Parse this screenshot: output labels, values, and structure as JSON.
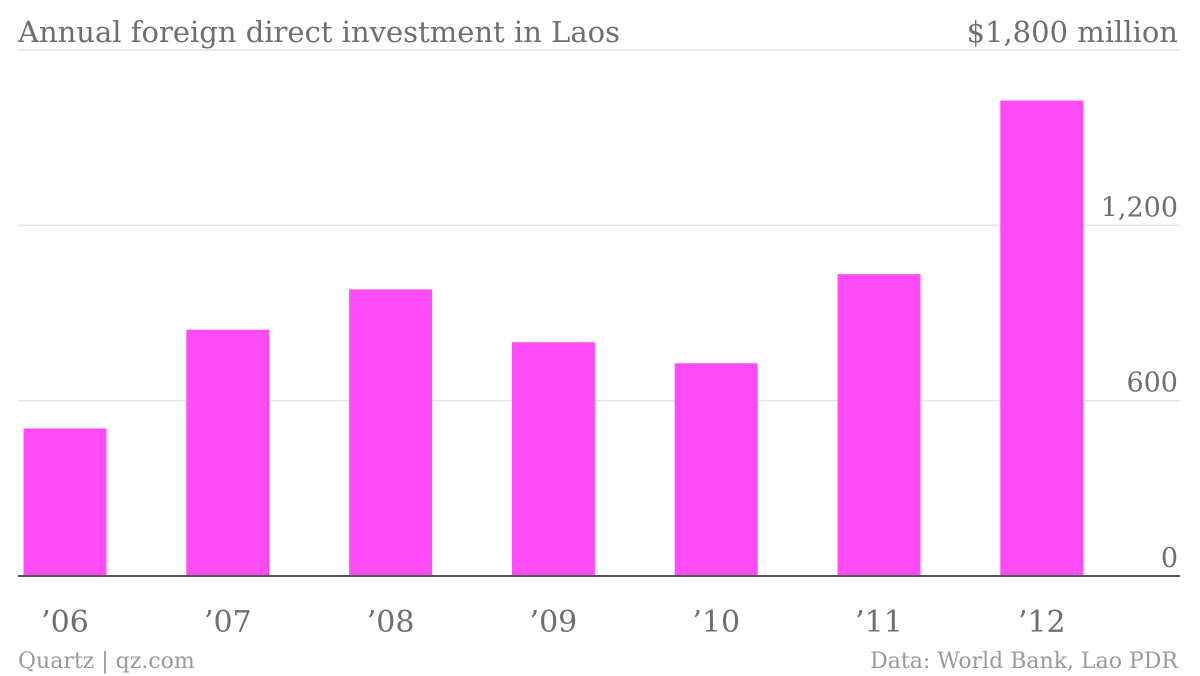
{
  "chart_data": {
    "type": "bar",
    "title": "Annual foreign direct investment in Laos",
    "top_label": "$1,800 million",
    "categories": [
      "’06",
      "’07",
      "’08",
      "’09",
      "’10",
      "’11",
      "’12"
    ],
    "values": [
      505,
      843,
      981,
      800,
      728,
      1033,
      1627
    ],
    "ylim": [
      0,
      1800
    ],
    "yticks": [
      {
        "value": 0,
        "label": "0"
      },
      {
        "value": 600,
        "label": "600"
      },
      {
        "value": 1200,
        "label": "1,200"
      }
    ],
    "grid": true,
    "bar_color": "#ff4cf6",
    "source_left": "Quartz | qz.com",
    "source_right": "Data: World Bank, Lao PDR"
  }
}
